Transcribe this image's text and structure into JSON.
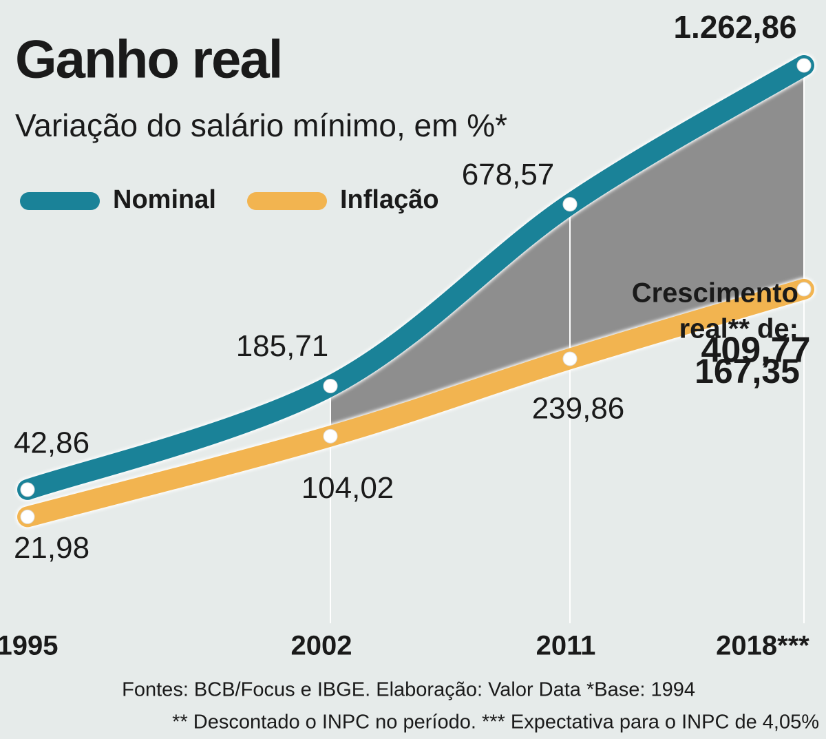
{
  "chart_data": {
    "type": "line",
    "title": "Ganho real",
    "subtitle": "Variação do salário mínimo, em %*",
    "categories": [
      "1995",
      "2002",
      "2011",
      "2018***"
    ],
    "series": [
      {
        "name": "Nominal",
        "color": "#1a8298",
        "values": [
          42.86,
          185.71,
          678.57,
          1262.86
        ],
        "value_labels": [
          "42,86",
          "185,71",
          "678,57",
          "1.262,86"
        ]
      },
      {
        "name": "Inflação",
        "color": "#f2b450",
        "values": [
          21.98,
          104.02,
          239.86,
          409.77
        ],
        "value_labels": [
          "21,98",
          "104,02",
          "239,86",
          "409,77"
        ]
      }
    ],
    "annotation": {
      "lines": [
        "Crescimento",
        "real** de:"
      ],
      "value": 167.35,
      "value_label": "167,35"
    },
    "notes": [
      "Fontes: BCB/Focus e IBGE. Elaboração: Valor Data  *Base: 1994",
      "** Descontado o INPC no período. *** Expectativa para o INPC de 4,05%"
    ]
  }
}
